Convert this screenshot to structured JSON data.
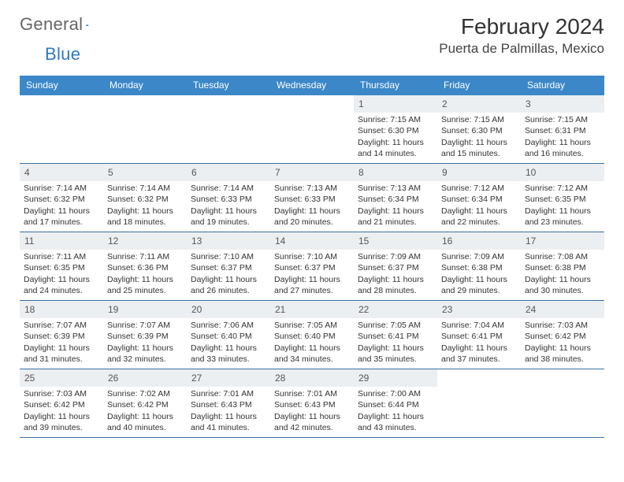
{
  "brand": {
    "word1": "General",
    "word2": "Blue"
  },
  "title": "February 2024",
  "location": "Puerta de Palmillas, Mexico",
  "colors": {
    "header_bg": "#3b87c8",
    "header_text": "#ffffff",
    "row_divider": "#3b6fa0",
    "daynum_bg": "#eceff2",
    "brand_blue": "#2f79bf"
  },
  "day_labels": [
    "Sunday",
    "Monday",
    "Tuesday",
    "Wednesday",
    "Thursday",
    "Friday",
    "Saturday"
  ],
  "weeks": [
    [
      {
        "n": "",
        "sr": "",
        "ss": "",
        "dl": ""
      },
      {
        "n": "",
        "sr": "",
        "ss": "",
        "dl": ""
      },
      {
        "n": "",
        "sr": "",
        "ss": "",
        "dl": ""
      },
      {
        "n": "",
        "sr": "",
        "ss": "",
        "dl": ""
      },
      {
        "n": "1",
        "sr": "Sunrise: 7:15 AM",
        "ss": "Sunset: 6:30 PM",
        "dl": "Daylight: 11 hours and 14 minutes."
      },
      {
        "n": "2",
        "sr": "Sunrise: 7:15 AM",
        "ss": "Sunset: 6:30 PM",
        "dl": "Daylight: 11 hours and 15 minutes."
      },
      {
        "n": "3",
        "sr": "Sunrise: 7:15 AM",
        "ss": "Sunset: 6:31 PM",
        "dl": "Daylight: 11 hours and 16 minutes."
      }
    ],
    [
      {
        "n": "4",
        "sr": "Sunrise: 7:14 AM",
        "ss": "Sunset: 6:32 PM",
        "dl": "Daylight: 11 hours and 17 minutes."
      },
      {
        "n": "5",
        "sr": "Sunrise: 7:14 AM",
        "ss": "Sunset: 6:32 PM",
        "dl": "Daylight: 11 hours and 18 minutes."
      },
      {
        "n": "6",
        "sr": "Sunrise: 7:14 AM",
        "ss": "Sunset: 6:33 PM",
        "dl": "Daylight: 11 hours and 19 minutes."
      },
      {
        "n": "7",
        "sr": "Sunrise: 7:13 AM",
        "ss": "Sunset: 6:33 PM",
        "dl": "Daylight: 11 hours and 20 minutes."
      },
      {
        "n": "8",
        "sr": "Sunrise: 7:13 AM",
        "ss": "Sunset: 6:34 PM",
        "dl": "Daylight: 11 hours and 21 minutes."
      },
      {
        "n": "9",
        "sr": "Sunrise: 7:12 AM",
        "ss": "Sunset: 6:34 PM",
        "dl": "Daylight: 11 hours and 22 minutes."
      },
      {
        "n": "10",
        "sr": "Sunrise: 7:12 AM",
        "ss": "Sunset: 6:35 PM",
        "dl": "Daylight: 11 hours and 23 minutes."
      }
    ],
    [
      {
        "n": "11",
        "sr": "Sunrise: 7:11 AM",
        "ss": "Sunset: 6:35 PM",
        "dl": "Daylight: 11 hours and 24 minutes."
      },
      {
        "n": "12",
        "sr": "Sunrise: 7:11 AM",
        "ss": "Sunset: 6:36 PM",
        "dl": "Daylight: 11 hours and 25 minutes."
      },
      {
        "n": "13",
        "sr": "Sunrise: 7:10 AM",
        "ss": "Sunset: 6:37 PM",
        "dl": "Daylight: 11 hours and 26 minutes."
      },
      {
        "n": "14",
        "sr": "Sunrise: 7:10 AM",
        "ss": "Sunset: 6:37 PM",
        "dl": "Daylight: 11 hours and 27 minutes."
      },
      {
        "n": "15",
        "sr": "Sunrise: 7:09 AM",
        "ss": "Sunset: 6:37 PM",
        "dl": "Daylight: 11 hours and 28 minutes."
      },
      {
        "n": "16",
        "sr": "Sunrise: 7:09 AM",
        "ss": "Sunset: 6:38 PM",
        "dl": "Daylight: 11 hours and 29 minutes."
      },
      {
        "n": "17",
        "sr": "Sunrise: 7:08 AM",
        "ss": "Sunset: 6:38 PM",
        "dl": "Daylight: 11 hours and 30 minutes."
      }
    ],
    [
      {
        "n": "18",
        "sr": "Sunrise: 7:07 AM",
        "ss": "Sunset: 6:39 PM",
        "dl": "Daylight: 11 hours and 31 minutes."
      },
      {
        "n": "19",
        "sr": "Sunrise: 7:07 AM",
        "ss": "Sunset: 6:39 PM",
        "dl": "Daylight: 11 hours and 32 minutes."
      },
      {
        "n": "20",
        "sr": "Sunrise: 7:06 AM",
        "ss": "Sunset: 6:40 PM",
        "dl": "Daylight: 11 hours and 33 minutes."
      },
      {
        "n": "21",
        "sr": "Sunrise: 7:05 AM",
        "ss": "Sunset: 6:40 PM",
        "dl": "Daylight: 11 hours and 34 minutes."
      },
      {
        "n": "22",
        "sr": "Sunrise: 7:05 AM",
        "ss": "Sunset: 6:41 PM",
        "dl": "Daylight: 11 hours and 35 minutes."
      },
      {
        "n": "23",
        "sr": "Sunrise: 7:04 AM",
        "ss": "Sunset: 6:41 PM",
        "dl": "Daylight: 11 hours and 37 minutes."
      },
      {
        "n": "24",
        "sr": "Sunrise: 7:03 AM",
        "ss": "Sunset: 6:42 PM",
        "dl": "Daylight: 11 hours and 38 minutes."
      }
    ],
    [
      {
        "n": "25",
        "sr": "Sunrise: 7:03 AM",
        "ss": "Sunset: 6:42 PM",
        "dl": "Daylight: 11 hours and 39 minutes."
      },
      {
        "n": "26",
        "sr": "Sunrise: 7:02 AM",
        "ss": "Sunset: 6:42 PM",
        "dl": "Daylight: 11 hours and 40 minutes."
      },
      {
        "n": "27",
        "sr": "Sunrise: 7:01 AM",
        "ss": "Sunset: 6:43 PM",
        "dl": "Daylight: 11 hours and 41 minutes."
      },
      {
        "n": "28",
        "sr": "Sunrise: 7:01 AM",
        "ss": "Sunset: 6:43 PM",
        "dl": "Daylight: 11 hours and 42 minutes."
      },
      {
        "n": "29",
        "sr": "Sunrise: 7:00 AM",
        "ss": "Sunset: 6:44 PM",
        "dl": "Daylight: 11 hours and 43 minutes."
      },
      {
        "n": "",
        "sr": "",
        "ss": "",
        "dl": ""
      },
      {
        "n": "",
        "sr": "",
        "ss": "",
        "dl": ""
      }
    ]
  ]
}
